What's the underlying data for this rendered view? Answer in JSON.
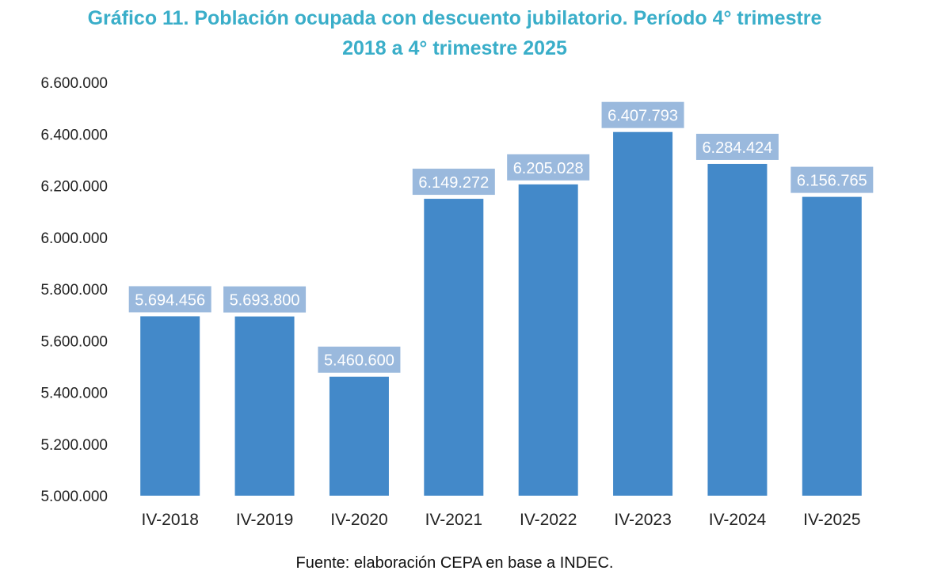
{
  "title": {
    "line1": "Gráfico 11. Población ocupada con descuento jubilatorio. Período 4° trimestre",
    "line2": "2018 a 4° trimestre 2025"
  },
  "source": "Fuente: elaboración CEPA en base a INDEC.",
  "colors": {
    "title": "#3aaec9",
    "bar": "#4389c9",
    "label_box": "#9ab9dd"
  },
  "chart_data": {
    "type": "bar",
    "title": "Gráfico 11. Población ocupada con descuento jubilatorio. Período 4° trimestre 2018 a 4° trimestre 2025",
    "xlabel": "",
    "ylabel": "",
    "ylim": [
      5000000,
      6600000
    ],
    "yticks": [
      5000000,
      5200000,
      5400000,
      5600000,
      5800000,
      6000000,
      6200000,
      6400000,
      6600000
    ],
    "ytick_labels": [
      "5.000.000",
      "5.200.000",
      "5.400.000",
      "5.600.000",
      "5.800.000",
      "6.000.000",
      "6.200.000",
      "6.400.000",
      "6.600.000"
    ],
    "categories": [
      "IV-2018",
      "IV-2019",
      "IV-2020",
      "IV-2021",
      "IV-2022",
      "IV-2023",
      "IV-2024",
      "IV-2025"
    ],
    "values": [
      5694456,
      5693800,
      5460600,
      6149272,
      6205028,
      6407793,
      6284424,
      6156765
    ],
    "value_labels": [
      "5.694.456",
      "5.693.800",
      "5.460.600",
      "6.149.272",
      "6.205.028",
      "6.407.793",
      "6.284.424",
      "6.156.765"
    ],
    "grid": false,
    "legend": "none"
  }
}
